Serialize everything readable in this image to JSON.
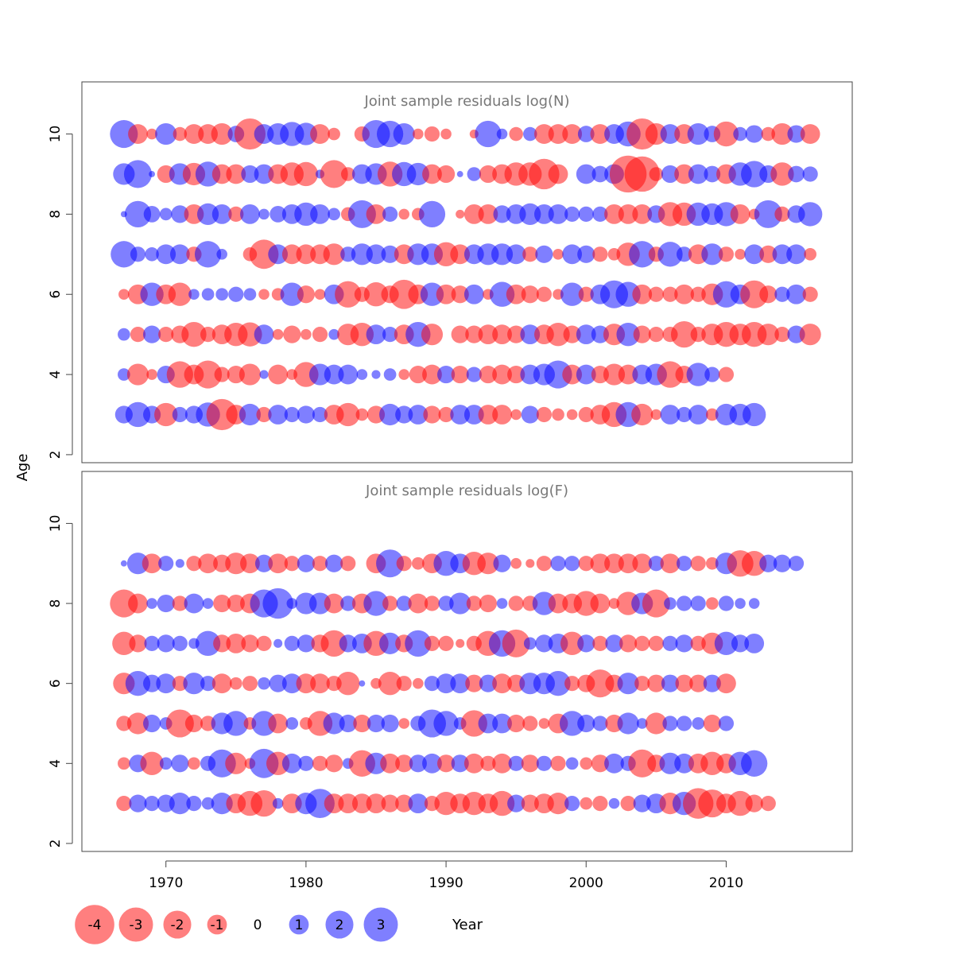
{
  "chart_data": {
    "type": "scatter",
    "encoding": "bubble",
    "x_axis": {
      "label": "Year",
      "range": [
        1964,
        2019
      ],
      "ticks": [
        1970,
        1980,
        1990,
        2000,
        2010
      ]
    },
    "y_axis": {
      "label": "Age",
      "range": [
        1.8,
        11.3
      ],
      "ticks": [
        2,
        4,
        6,
        8,
        10
      ]
    },
    "colors": {
      "negative": "#ff0000",
      "positive": "#0000ff",
      "opacity": 0.5
    },
    "legend": {
      "placement": "bottom-left",
      "items": [
        {
          "label": "-4",
          "value": -4
        },
        {
          "label": "-3",
          "value": -3
        },
        {
          "label": "-2",
          "value": -2
        },
        {
          "label": "-1",
          "value": -1
        },
        {
          "label": "0",
          "value": 0
        },
        {
          "label": "1",
          "value": 1
        },
        {
          "label": "2",
          "value": 2
        },
        {
          "label": "3",
          "value": 3
        }
      ]
    },
    "years_start": 1967,
    "panels": [
      {
        "title": "Joint sample residuals log(N)",
        "ages": [
          10,
          9,
          8,
          7,
          6,
          5,
          4,
          3
        ],
        "residuals": {
          "10": [
            2.0,
            -1.0,
            -0.3,
            1.2,
            -0.5,
            -1.0,
            -1.0,
            -1.2,
            0.7,
            -2.5,
            1.0,
            1.2,
            1.5,
            1.3,
            -1.0,
            -0.4,
            0,
            -0.6,
            2.0,
            1.8,
            1.2,
            -0.3,
            -0.6,
            -0.3,
            0,
            -0.2,
            1.8,
            0.3,
            -0.5,
            0.5,
            -1.0,
            -1.0,
            -1.0,
            0.7,
            -1.0,
            1.0,
            1.6,
            -2.5,
            -1.2,
            1.0,
            -1.0,
            1.2,
            0.7,
            -1.6,
            0.5,
            0.8,
            -0.5,
            -1.2,
            0.8,
            -1.0
          ],
          "9": [
            1.2,
            2.0,
            0.1,
            -0.8,
            1.2,
            -1.3,
            1.6,
            -1.0,
            -1.0,
            0.8,
            1.0,
            -1.0,
            -1.4,
            -1.5,
            0.2,
            -2.0,
            -0.5,
            1.0,
            1.2,
            -1.6,
            1.5,
            1.3,
            -1.0,
            -0.8,
            0.1,
            0.5,
            -0.8,
            -1.0,
            -1.4,
            -1.4,
            -2.4,
            -1.0,
            0,
            1.0,
            0.7,
            1.0,
            -3.5,
            -3.2,
            -0.5,
            0.8,
            -1.0,
            1.0,
            0.7,
            -1.0,
            1.4,
            1.8,
            0.8,
            -1.4,
            0.7,
            0.6
          ],
          "8": [
            0.1,
            1.8,
            0.7,
            0.4,
            0.8,
            -1.0,
            1.2,
            1.0,
            -0.6,
            1.0,
            0.3,
            0.7,
            1.0,
            1.4,
            1.0,
            0.4,
            -0.5,
            2.0,
            -1.0,
            0.6,
            -0.3,
            -0.4,
            1.8,
            0,
            -0.2,
            -1.0,
            -1.0,
            0.8,
            1.0,
            1.2,
            1.0,
            1.0,
            0.6,
            0.6,
            0.6,
            -1.0,
            -1.0,
            -1.0,
            0.8,
            -1.5,
            -1.4,
            1.4,
            1.2,
            1.5,
            -1.0,
            -0.3,
            2.0,
            -0.6,
            0.8,
            1.5
          ],
          "7": [
            1.8,
            0.6,
            0.5,
            1.0,
            1.0,
            -0.6,
            1.8,
            0.3,
            0,
            -0.5,
            -2.2,
            1.0,
            -1.0,
            -1.0,
            -1.0,
            -1.2,
            0.6,
            1.2,
            1.0,
            0.8,
            -1.0,
            1.2,
            1.2,
            -1.5,
            -1.0,
            1.0,
            1.2,
            1.2,
            1.0,
            -0.6,
            0.8,
            -0.3,
            1.0,
            0.8,
            -0.6,
            -0.4,
            -1.4,
            1.8,
            -0.6,
            1.6,
            0.6,
            -1.0,
            1.2,
            -0.6,
            -0.3,
            1.0,
            -0.8,
            1.0,
            1.0,
            -0.4
          ],
          "6": [
            -0.3,
            -1.0,
            1.4,
            -1.0,
            -1.4,
            0.3,
            0.4,
            0.4,
            0.6,
            0.4,
            -0.3,
            -0.4,
            1.4,
            -0.8,
            -0.3,
            1.0,
            -1.8,
            -0.6,
            -1.5,
            -0.8,
            -2.2,
            -1.0,
            1.4,
            -1.0,
            -0.8,
            1.0,
            -0.3,
            1.6,
            -1.0,
            -0.8,
            -0.6,
            -0.3,
            1.4,
            -0.6,
            1.0,
            2.0,
            1.6,
            -1.0,
            -0.6,
            -0.6,
            -1.0,
            -0.6,
            -1.2,
            1.8,
            1.0,
            -2.0,
            -0.8,
            0.6,
            1.0,
            -0.6
          ],
          "5": [
            0.4,
            -0.6,
            0.8,
            -0.6,
            -0.8,
            -1.6,
            -0.6,
            -1.0,
            -1.4,
            -1.5,
            1.0,
            -0.3,
            -0.8,
            -0.3,
            -0.6,
            0.3,
            -1.2,
            -1.4,
            1.0,
            0.6,
            -1.0,
            1.6,
            -1.2,
            0,
            -0.8,
            -0.8,
            -1.0,
            -1.0,
            -0.8,
            1.0,
            -1.0,
            -1.4,
            -0.8,
            1.0,
            0.8,
            -1.2,
            1.4,
            -0.8,
            -0.6,
            -0.6,
            -1.8,
            -0.6,
            -1.2,
            -1.6,
            -1.2,
            -1.6,
            -1.2,
            -0.6,
            0.8,
            -1.2
          ],
          "4": [
            0.4,
            -1.2,
            -0.3,
            0.8,
            -1.8,
            -1.0,
            -2.0,
            -0.6,
            -0.8,
            -1.2,
            0.2,
            -1.0,
            -0.3,
            -1.6,
            1.2,
            1.0,
            1.0,
            0.3,
            0.2,
            0.4,
            -0.3,
            -0.8,
            -1.0,
            0.8,
            -0.8,
            0.6,
            -0.8,
            -1.0,
            -0.8,
            1.0,
            1.2,
            2.0,
            -1.0,
            1.0,
            -0.8,
            -1.2,
            -1.0,
            1.0,
            1.2,
            -1.8,
            -0.8,
            1.4,
            0.6,
            -0.6
          ],
          "3": [
            0.8,
            1.6,
            0.8,
            -1.4,
            0.6,
            0.8,
            1.5,
            -2.5,
            -1.0,
            1.2,
            -0.6,
            1.0,
            0.6,
            0.8,
            0.6,
            -1.0,
            -1.4,
            -0.4,
            -0.8,
            1.2,
            0.8,
            1.0,
            -0.8,
            -0.6,
            1.0,
            1.0,
            -1.0,
            -1.0,
            -0.3,
            0.8,
            -0.6,
            -0.4,
            -0.3,
            -0.6,
            -1.0,
            -1.6,
            1.6,
            -1.2,
            -0.3,
            1.0,
            0.6,
            1.0,
            -0.4,
            1.2,
            1.2,
            1.4
          ]
        }
      },
      {
        "title": "Joint sample residuals log(F)",
        "ages": [
          9,
          8,
          7,
          6,
          5,
          4,
          3
        ],
        "residuals": {
          "9": [
            0.1,
            1.2,
            -1.0,
            0.6,
            0.2,
            -0.6,
            -1.0,
            -0.8,
            -1.2,
            -1.0,
            0.8,
            -1.0,
            -0.6,
            0.8,
            -0.6,
            0.8,
            -0.6,
            0,
            -1.0,
            2.0,
            -0.6,
            -0.4,
            -1.0,
            1.6,
            1.0,
            -1.4,
            -1.2,
            0.8,
            -0.3,
            -0.2,
            -0.6,
            0.6,
            0.6,
            -0.6,
            -1.0,
            -1.0,
            -1.0,
            -1.0,
            0.6,
            -1.0,
            0.6,
            -0.6,
            -0.4,
            1.2,
            -1.8,
            -1.6,
            0.8,
            0.8,
            0.6
          ],
          "8": [
            -2.0,
            -1.0,
            0.3,
            0.8,
            -0.6,
            1.0,
            0.3,
            -0.8,
            -0.8,
            -1.0,
            2.0,
            2.4,
            0.3,
            1.2,
            1.2,
            -1.0,
            0.6,
            -1.0,
            1.6,
            -0.6,
            0.6,
            -1.0,
            -0.6,
            0.6,
            1.2,
            -0.6,
            -0.8,
            0.3,
            -0.6,
            -0.6,
            1.4,
            -1.0,
            -1.0,
            -1.6,
            -1.0,
            -0.3,
            -1.4,
            1.2,
            -2.0,
            0.4,
            0.6,
            0.6,
            -0.4,
            0.6,
            0.3,
            0.3
          ],
          "7": [
            -1.4,
            -0.8,
            0.6,
            0.8,
            0.6,
            0.3,
            1.6,
            -0.8,
            -1.0,
            -0.8,
            -0.6,
            0.2,
            0.6,
            0.8,
            -0.8,
            -1.8,
            0.8,
            1.0,
            -1.6,
            1.2,
            -0.8,
            1.8,
            -0.6,
            -0.6,
            -0.2,
            -0.6,
            -1.6,
            1.8,
            -2.0,
            0.4,
            0.8,
            1.0,
            -1.4,
            0.8,
            -0.6,
            0.8,
            -0.8,
            -0.6,
            -0.6,
            0.6,
            0.8,
            -0.6,
            -1.2,
            1.4,
            0.8,
            1.0
          ],
          "6": [
            -1.2,
            1.6,
            0.8,
            1.0,
            -0.6,
            1.2,
            0.6,
            -1.0,
            -0.4,
            -0.6,
            0.4,
            0.8,
            1.0,
            -1.0,
            -1.0,
            -0.6,
            -1.4,
            0.1,
            -0.3,
            -1.4,
            -0.6,
            -0.3,
            0.6,
            1.0,
            1.0,
            -0.8,
            0.8,
            -1.0,
            -0.8,
            1.2,
            1.2,
            1.6,
            -0.6,
            -0.8,
            -2.0,
            -0.8,
            1.2,
            -0.6,
            -0.8,
            0.8,
            -0.8,
            -0.8,
            0.8,
            -1.0
          ],
          "5": [
            -0.6,
            -1.2,
            0.8,
            0.4,
            -2.0,
            -0.8,
            -0.6,
            1.2,
            1.6,
            -0.4,
            1.6,
            -1.0,
            0.4,
            -0.4,
            -1.6,
            1.2,
            0.8,
            -0.8,
            0.8,
            0.8,
            -0.3,
            0.6,
            2.0,
            1.6,
            0.4,
            -1.8,
            1.0,
            1.0,
            -0.8,
            -0.6,
            -0.3,
            -1.0,
            1.6,
            0.8,
            0.6,
            -0.8,
            1.2,
            0.3,
            -1.2,
            0.6,
            0.6,
            0.4,
            -0.8,
            0.6
          ],
          "4": [
            -0.4,
            0.8,
            -1.4,
            0.4,
            0.8,
            -0.4,
            0.6,
            2.0,
            -1.2,
            -0.3,
            2.2,
            -1.4,
            1.0,
            0.6,
            -0.6,
            -0.8,
            0.3,
            -1.8,
            1.2,
            -1.0,
            -0.8,
            0.8,
            1.0,
            -0.8,
            0.8,
            -1.0,
            -0.6,
            -1.0,
            0.6,
            -0.8,
            0.6,
            -0.6,
            0.4,
            -0.4,
            -0.8,
            1.0,
            0.6,
            -2.0,
            -0.8,
            1.2,
            1.0,
            -1.0,
            -1.4,
            -1.0,
            1.4,
            1.8
          ],
          "3": [
            -0.6,
            0.8,
            0.6,
            0.8,
            1.2,
            0.6,
            0.4,
            1.2,
            -1.0,
            -1.6,
            -1.8,
            0.3,
            -1.0,
            1.2,
            2.2,
            -1.0,
            -1.0,
            -1.0,
            -1.0,
            -0.8,
            -0.8,
            1.0,
            -0.6,
            -1.4,
            -1.0,
            -1.4,
            -1.0,
            -1.6,
            0.8,
            -0.8,
            -1.0,
            -1.2,
            0.6,
            -0.4,
            -0.6,
            0.3,
            -0.6,
            0.8,
            1.0,
            -1.2,
            1.4,
            -2.4,
            -2.0,
            -1.0,
            -1.6,
            -0.8,
            -0.6
          ]
        }
      }
    ]
  },
  "labels": {
    "x_axis_title": "Year",
    "y_axis_title": "Age"
  }
}
